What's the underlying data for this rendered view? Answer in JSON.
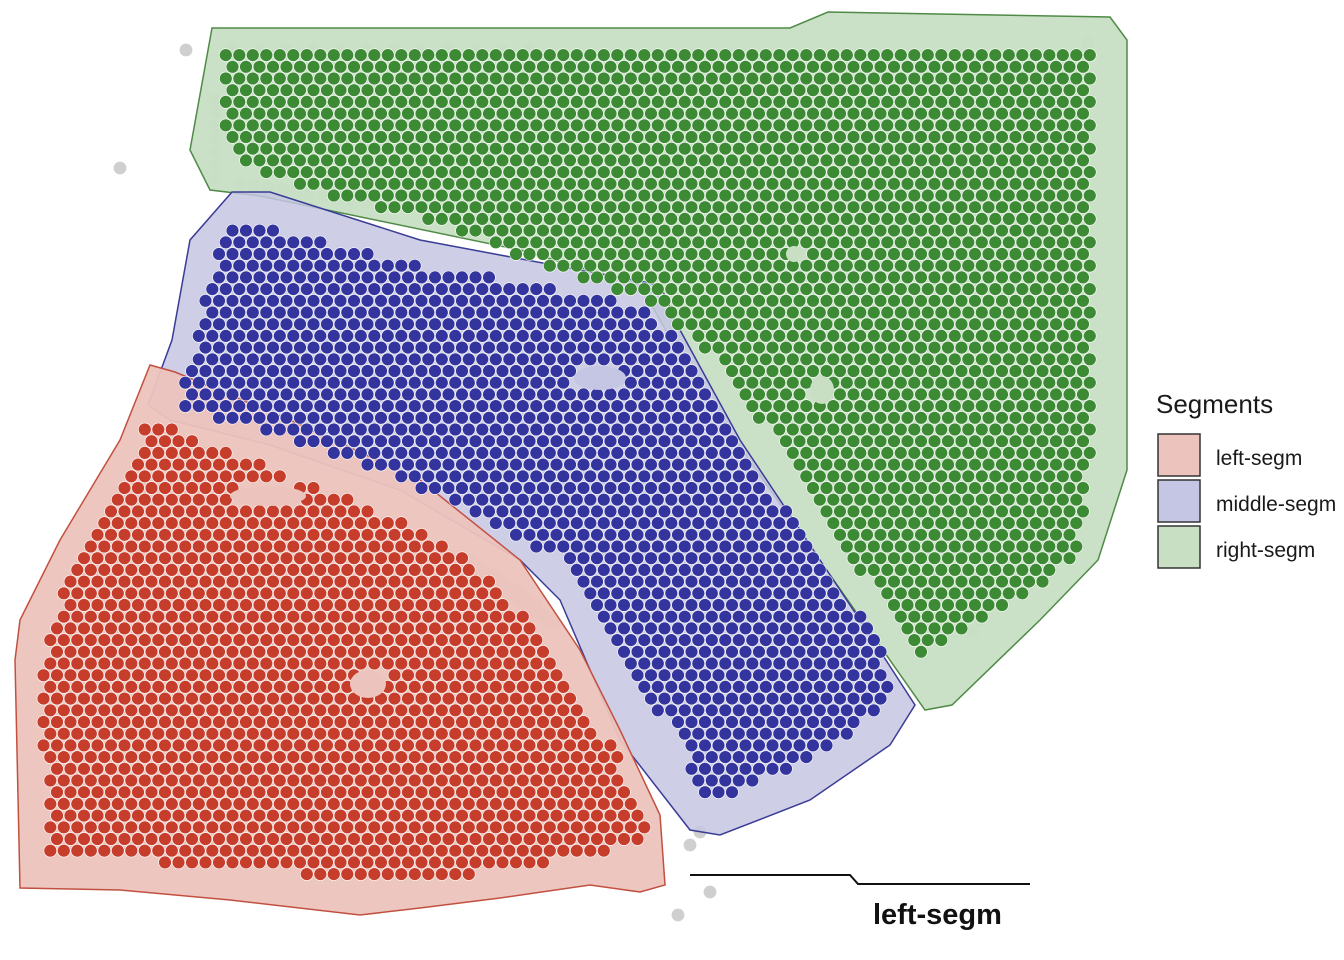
{
  "legend": {
    "title": "Segments",
    "items": [
      {
        "key": "left",
        "label": "left-segm",
        "fill": "#edc3bd",
        "stroke": "#333333"
      },
      {
        "key": "middle",
        "label": "middle-segm",
        "fill": "#c5c6e3",
        "stroke": "#333333"
      },
      {
        "key": "right",
        "label": "right-segm",
        "fill": "#c8dfc4",
        "stroke": "#333333"
      }
    ]
  },
  "segments": [
    {
      "key": "right",
      "label": "right-segm",
      "spot_color": "#3d8a35",
      "area_fill": "#c8dfc4",
      "outline": "#4f8a47"
    },
    {
      "key": "middle",
      "label": "middle-segm",
      "spot_color": "#34349e",
      "area_fill": "#c5c6e3",
      "outline": "#3a3c96"
    },
    {
      "key": "left",
      "label": "left-segm",
      "spot_color": "#c63d2b",
      "area_fill": "#edc3bd",
      "outline": "#c25040"
    }
  ],
  "unassigned_spot_color": "#cfcfcf",
  "annotation": {
    "label": "left-segm"
  }
}
